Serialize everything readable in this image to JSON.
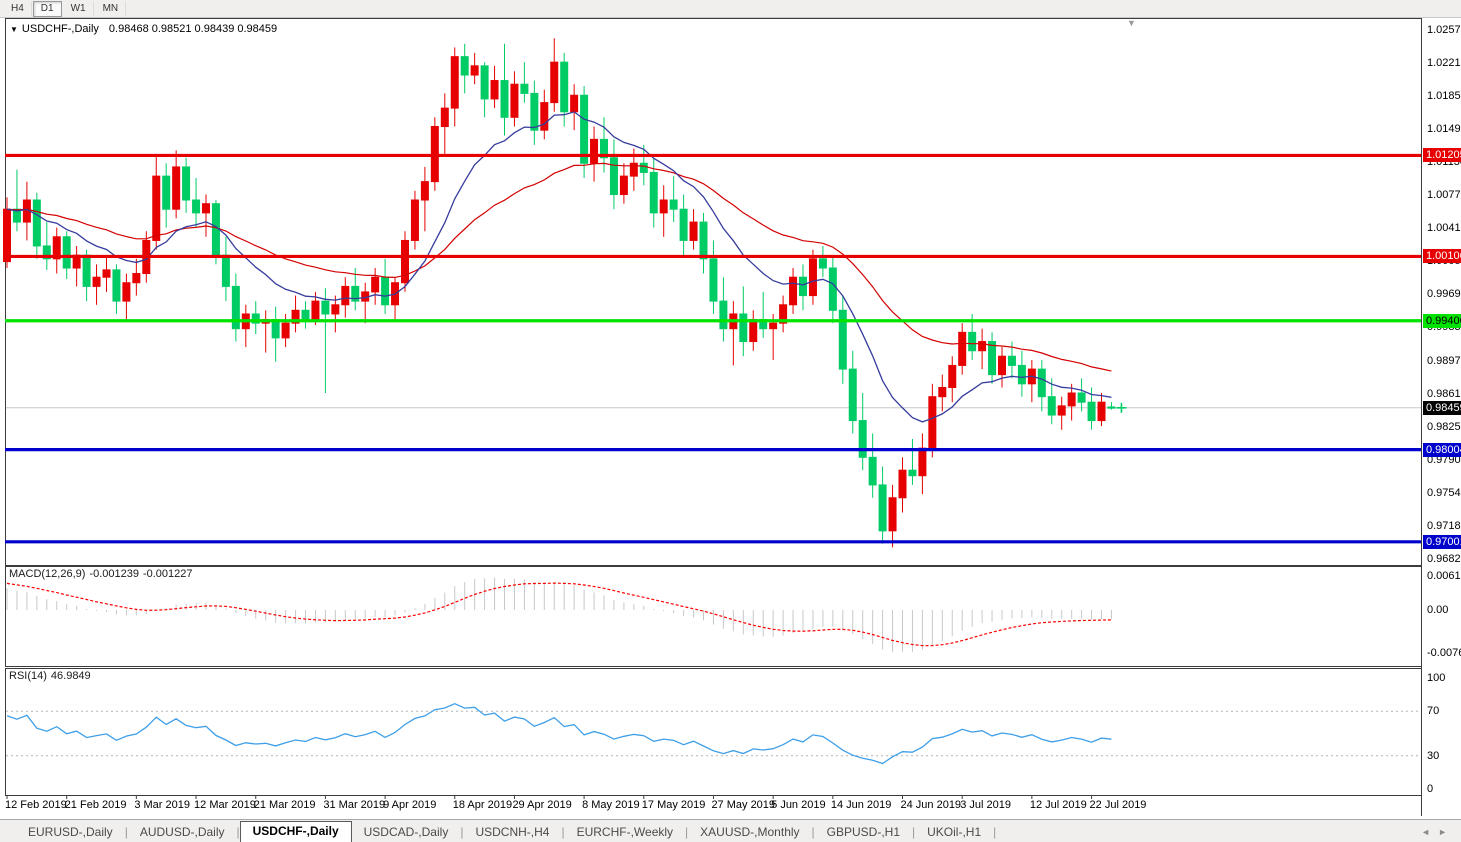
{
  "toolbar": {
    "timeframes": [
      {
        "label": "H4",
        "active": false
      },
      {
        "label": "D1",
        "active": true
      },
      {
        "label": "W1",
        "active": false
      },
      {
        "label": "MN",
        "active": false
      }
    ]
  },
  "chart": {
    "title": "USDCHF-,Daily",
    "ohlc_text": "0.98468 0.98521 0.98439 0.98459"
  },
  "chart_data": {
    "type": "candlestick",
    "symbol": "USDCHF-",
    "timeframe": "Daily",
    "open": 0.98468,
    "high": 0.98521,
    "low": 0.98439,
    "close": 0.98459,
    "price_axis_ticks": [
      "1.02570",
      "1.02210",
      "1.01850",
      "1.01490",
      "1.01130",
      "1.00770",
      "1.00410",
      "1.00050",
      "0.99690",
      "0.99330",
      "0.98970",
      "0.98610",
      "0.98250",
      "0.97900",
      "0.97540",
      "0.97180",
      "0.96820"
    ],
    "hlines": [
      {
        "value": 1.01205,
        "label": "1.01205",
        "color": "#e60000",
        "text": "#ffffff"
      },
      {
        "value": 1.00106,
        "label": "1.00106",
        "color": "#e60000",
        "text": "#ffffff"
      },
      {
        "value": 0.99406,
        "label": "0.99406",
        "color": "#00e200",
        "text": "#000000"
      },
      {
        "value": 0.98004,
        "label": "0.98004",
        "color": "#0000cc",
        "text": "#ffffff"
      },
      {
        "value": 0.97001,
        "label": "0.97001",
        "color": "#0000cc",
        "text": "#ffffff"
      }
    ],
    "current_price": {
      "value": 0.98459,
      "label": "0.98459",
      "bg": "#000000",
      "text": "#ffffff"
    },
    "colors": {
      "bull": "#e60000",
      "bear": "#00cc66",
      "ma_fast": "#363c9c",
      "ma_slow": "#d40000",
      "grid": "#c8c8c8"
    },
    "candles": [
      [
        1.0005,
        1.0075,
        0.9998,
        1.0062
      ],
      [
        1.0062,
        1.0105,
        1.0038,
        1.0048
      ],
      [
        1.0048,
        1.0092,
        1.0028,
        1.0072
      ],
      [
        1.0072,
        1.008,
        1.0008,
        1.0022
      ],
      [
        1.0022,
        1.0048,
        0.9996,
        1.0008
      ],
      [
        1.0008,
        1.0042,
        0.9992,
        1.0032
      ],
      [
        1.0032,
        1.0038,
        0.9986,
        0.9998
      ],
      [
        0.9998,
        1.0022,
        0.9978,
        1.0012
      ],
      [
        1.0012,
        1.0018,
        0.9962,
        0.9978
      ],
      [
        0.9978,
        1.0002,
        0.9958,
        0.9988
      ],
      [
        0.9988,
        1.0012,
        0.9972,
        0.9996
      ],
      [
        0.9996,
        1.0002,
        0.9948,
        0.9962
      ],
      [
        0.9962,
        0.9992,
        0.9942,
        0.9982
      ],
      [
        0.9982,
        1.0008,
        0.9968,
        0.9992
      ],
      [
        0.9992,
        1.0038,
        0.9982,
        1.0028
      ],
      [
        1.0028,
        1.0122,
        1.0018,
        1.0098
      ],
      [
        1.0098,
        1.0112,
        1.0042,
        1.0062
      ],
      [
        1.0062,
        1.0126,
        1.0052,
        1.0108
      ],
      [
        1.0108,
        1.0118,
        1.0058,
        1.0072
      ],
      [
        1.0072,
        1.0096,
        1.0042,
        1.0058
      ],
      [
        1.0058,
        1.0078,
        1.0032,
        1.0068
      ],
      [
        1.0068,
        1.0072,
        1.0002,
        1.0012
      ],
      [
        1.0012,
        1.0032,
        0.9962,
        0.9978
      ],
      [
        0.9978,
        0.9992,
        0.9918,
        0.9932
      ],
      [
        0.9932,
        0.9958,
        0.9912,
        0.9948
      ],
      [
        0.9948,
        0.9962,
        0.9926,
        0.9938
      ],
      [
        0.9938,
        0.9952,
        0.9906,
        0.9942
      ],
      [
        0.9942,
        0.9956,
        0.9896,
        0.9922
      ],
      [
        0.9922,
        0.9948,
        0.9912,
        0.9938
      ],
      [
        0.9938,
        0.9968,
        0.9928,
        0.9952
      ],
      [
        0.9952,
        0.9962,
        0.9932,
        0.9942
      ],
      [
        0.9942,
        0.9972,
        0.9936,
        0.9962
      ],
      [
        0.9962,
        0.9976,
        0.9862,
        0.9948
      ],
      [
        0.9948,
        0.9968,
        0.9928,
        0.9958
      ],
      [
        0.9958,
        0.9988,
        0.9944,
        0.9978
      ],
      [
        0.9978,
        0.9998,
        0.9952,
        0.9962
      ],
      [
        0.9962,
        0.9982,
        0.9938,
        0.9972
      ],
      [
        0.9972,
        0.9998,
        0.9958,
        0.9988
      ],
      [
        0.9988,
        1.0008,
        0.9948,
        0.9958
      ],
      [
        0.9958,
        0.9988,
        0.9942,
        0.9982
      ],
      [
        0.9982,
        1.0038,
        0.9972,
        1.0028
      ],
      [
        1.0028,
        1.0082,
        1.0018,
        1.0072
      ],
      [
        1.0072,
        1.0108,
        1.0038,
        1.0092
      ],
      [
        1.0092,
        1.0162,
        1.0082,
        1.0152
      ],
      [
        1.0152,
        1.0188,
        1.0122,
        1.0172
      ],
      [
        1.0172,
        1.0238,
        1.0152,
        1.0228
      ],
      [
        1.0228,
        1.0242,
        1.0188,
        1.0208
      ],
      [
        1.0208,
        1.0232,
        1.0198,
        1.0218
      ],
      [
        1.0218,
        1.0222,
        1.0162,
        1.0182
      ],
      [
        1.0182,
        1.0218,
        1.0172,
        1.0202
      ],
      [
        1.0202,
        1.0242,
        1.0142,
        1.0162
      ],
      [
        1.0162,
        1.0212,
        1.0152,
        1.0198
      ],
      [
        1.0198,
        1.0222,
        1.0178,
        1.0188
      ],
      [
        1.0188,
        1.0202,
        1.0132,
        1.0148
      ],
      [
        1.0148,
        1.0192,
        1.0138,
        1.0178
      ],
      [
        1.0178,
        1.0248,
        1.0168,
        1.0222
      ],
      [
        1.0222,
        1.0232,
        1.0152,
        1.0168
      ],
      [
        1.0168,
        1.0198,
        1.0148,
        1.0186
      ],
      [
        1.0186,
        1.0196,
        1.0096,
        1.0112
      ],
      [
        1.0112,
        1.0152,
        1.0092,
        1.0138
      ],
      [
        1.0138,
        1.0162,
        1.0102,
        1.0118
      ],
      [
        1.0118,
        1.0138,
        1.0062,
        1.0078
      ],
      [
        1.0078,
        1.0112,
        1.0068,
        1.0098
      ],
      [
        1.0098,
        1.0128,
        1.0082,
        1.0112
      ],
      [
        1.0112,
        1.0132,
        1.0088,
        1.0102
      ],
      [
        1.0102,
        1.0118,
        1.0042,
        1.0058
      ],
      [
        1.0058,
        1.0088,
        1.0032,
        1.0072
      ],
      [
        1.0072,
        1.0098,
        1.0048,
        1.0062
      ],
      [
        1.0062,
        1.0078,
        1.0012,
        1.0028
      ],
      [
        1.0028,
        1.0062,
        1.0018,
        1.0048
      ],
      [
        1.0048,
        1.0058,
        0.9992,
        1.0008
      ],
      [
        1.0008,
        1.0028,
        0.9948,
        0.9962
      ],
      [
        0.9962,
        0.9988,
        0.9918,
        0.9932
      ],
      [
        0.9932,
        0.9962,
        0.9892,
        0.9948
      ],
      [
        0.9948,
        0.9978,
        0.9902,
        0.9918
      ],
      [
        0.9918,
        0.9952,
        0.9908,
        0.9942
      ],
      [
        0.9942,
        0.9972,
        0.9922,
        0.9932
      ],
      [
        0.9932,
        0.9948,
        0.9898,
        0.9938
      ],
      [
        0.9938,
        0.9968,
        0.9928,
        0.9958
      ],
      [
        0.9958,
        0.9998,
        0.9948,
        0.9988
      ],
      [
        0.9988,
        1.0002,
        0.9952,
        0.9968
      ],
      [
        0.9968,
        1.0018,
        0.9958,
        1.0008
      ],
      [
        1.0008,
        1.0022,
        0.9988,
        0.9998
      ],
      [
        0.9998,
        1.0012,
        0.9938,
        0.9952
      ],
      [
        0.9952,
        0.9968,
        0.9872,
        0.9888
      ],
      [
        0.9888,
        0.9908,
        0.9818,
        0.9832
      ],
      [
        0.9832,
        0.9862,
        0.9778,
        0.9792
      ],
      [
        0.9792,
        0.9818,
        0.9748,
        0.9762
      ],
      [
        0.9762,
        0.9782,
        0.9698,
        0.9712
      ],
      [
        0.9712,
        0.9762,
        0.9694,
        0.9748
      ],
      [
        0.9748,
        0.9792,
        0.9732,
        0.9778
      ],
      [
        0.9778,
        0.9812,
        0.9762,
        0.9772
      ],
      [
        0.9772,
        0.9818,
        0.9752,
        0.9802
      ],
      [
        0.9802,
        0.9872,
        0.9792,
        0.9858
      ],
      [
        0.9858,
        0.9882,
        0.9842,
        0.9868
      ],
      [
        0.9868,
        0.9902,
        0.9852,
        0.9892
      ],
      [
        0.9892,
        0.9938,
        0.9882,
        0.9928
      ],
      [
        0.9928,
        0.9948,
        0.9898,
        0.9908
      ],
      [
        0.9908,
        0.9932,
        0.9888,
        0.9918
      ],
      [
        0.9918,
        0.9928,
        0.9872,
        0.9882
      ],
      [
        0.9882,
        0.9912,
        0.9868,
        0.9902
      ],
      [
        0.9902,
        0.9918,
        0.9878,
        0.9892
      ],
      [
        0.9892,
        0.9908,
        0.9858,
        0.9872
      ],
      [
        0.9872,
        0.9898,
        0.9852,
        0.9888
      ],
      [
        0.9888,
        0.9898,
        0.9842,
        0.9858
      ],
      [
        0.9858,
        0.9878,
        0.9828,
        0.9838
      ],
      [
        0.9838,
        0.9858,
        0.9822,
        0.9848
      ],
      [
        0.9848,
        0.9872,
        0.9832,
        0.9862
      ],
      [
        0.9862,
        0.9878,
        0.9842,
        0.9852
      ],
      [
        0.9852,
        0.9868,
        0.9822,
        0.9832
      ],
      [
        0.9832,
        0.9862,
        0.9826,
        0.9852
      ],
      [
        0.98468,
        0.98521,
        0.98439,
        0.98459
      ]
    ],
    "date_ticks": [
      {
        "label": "12 Feb 2019",
        "bar": 0
      },
      {
        "label": "21 Feb 2019",
        "bar": 6
      },
      {
        "label": "3 Mar 2019",
        "bar": 13
      },
      {
        "label": "12 Mar 2019",
        "bar": 19
      },
      {
        "label": "21 Mar 2019",
        "bar": 25
      },
      {
        "label": "31 Mar 2019",
        "bar": 32
      },
      {
        "label": "9 Apr 2019",
        "bar": 38
      },
      {
        "label": "18 Apr 2019",
        "bar": 45
      },
      {
        "label": "29 Apr 2019",
        "bar": 51
      },
      {
        "label": "8 May 2019",
        "bar": 58
      },
      {
        "label": "17 May 2019",
        "bar": 64
      },
      {
        "label": "27 May 2019",
        "bar": 71
      },
      {
        "label": "5 Jun 2019",
        "bar": 77
      },
      {
        "label": "14 Jun 2019",
        "bar": 83
      },
      {
        "label": "24 Jun 2019",
        "bar": 90
      },
      {
        "label": "3 Jul 2019",
        "bar": 96
      },
      {
        "label": "12 Jul 2019",
        "bar": 103
      },
      {
        "label": "22 Jul 2019",
        "bar": 109
      }
    ],
    "macd": {
      "label": "MACD(12,26,9)",
      "value1": "-0.001239",
      "value2": "-0.001227",
      "fast": 12,
      "slow": 26,
      "signal": 9,
      "axis_ticks": [
        "0.00613",
        "0.00",
        "-0.007612"
      ],
      "histogram_color": "#c8c8c8",
      "signal_color": "#ff0000"
    },
    "rsi": {
      "label": "RSI(14)",
      "value": "46.9849",
      "period": 14,
      "axis_ticks": [
        "100",
        "70",
        "30",
        "0"
      ],
      "levels": [
        70,
        30
      ],
      "line_color": "#3e9fe8",
      "level_color": "#b4b4b4"
    }
  },
  "tabs": {
    "separator": "|",
    "items": [
      {
        "label": "EURUSD-,Daily",
        "active": false
      },
      {
        "label": "AUDUSD-,Daily",
        "active": false
      },
      {
        "label": "USDCHF-,Daily",
        "active": true
      },
      {
        "label": "USDCAD-,Daily",
        "active": false
      },
      {
        "label": "USDCNH-,H4",
        "active": false
      },
      {
        "label": "EURCHF-,Weekly",
        "active": false
      },
      {
        "label": "XAUUSD-,Monthly",
        "active": false
      },
      {
        "label": "GBPUSD-,H1",
        "active": false
      },
      {
        "label": "UKOil-,H1",
        "active": false
      }
    ]
  }
}
